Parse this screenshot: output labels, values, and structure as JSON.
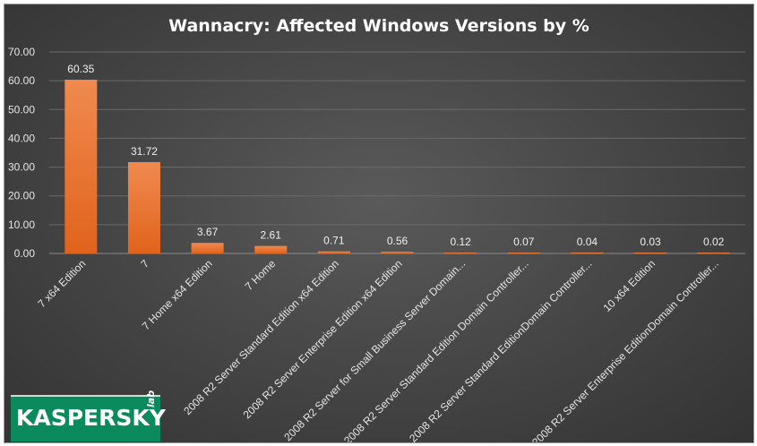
{
  "chart_data": {
    "type": "bar",
    "title": "Wannacry: Affected Windows Versions by %",
    "categories": [
      "7 x64 Edition",
      "7",
      "7 Home x64 Edition",
      "7 Home",
      "2008 R2 Server Standard Edition x64 Edition",
      "2008 R2 Server Enterprise Edition x64 Edition",
      "2008 R2 Server for Small Business Server Domain...",
      "2008 R2 Server Standard Edition Domain Controller...",
      "2008 R2 Server Standard EditionDomain Controller...",
      "10 x64 Edition",
      "2008 R2 Server Enterprise EditionDomain Controller..."
    ],
    "values": [
      60.35,
      31.72,
      3.67,
      2.61,
      0.71,
      0.56,
      0.12,
      0.07,
      0.04,
      0.03,
      0.02
    ],
    "data_labels": [
      "60.35",
      "31.72",
      "3.67",
      "2.61",
      "0.71",
      "0.56",
      "0.12",
      "0.07",
      "0.04",
      "0.03",
      "0.02"
    ],
    "y_ticks": [
      "0.00",
      "10.00",
      "20.00",
      "30.00",
      "40.00",
      "50.00",
      "60.00",
      "70.00"
    ],
    "ylim": [
      0,
      70
    ],
    "xlabel": "",
    "ylabel": "",
    "grid": true,
    "legend": "none",
    "colors": {
      "bar_top": "#f08a4f",
      "bar_bottom": "#e0631c",
      "background": "#474747"
    }
  },
  "logo": {
    "word": "KASPERSKY",
    "sub": "lab"
  }
}
